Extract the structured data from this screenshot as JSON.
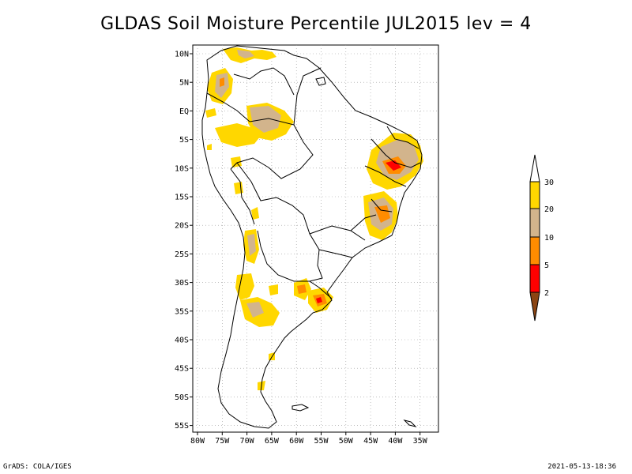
{
  "title": "GLDAS Soil Moisture Percentile JUL2015 lev = 4",
  "lat_labels": [
    "10N",
    "5N",
    "EQ",
    "5S",
    "10S",
    "15S",
    "20S",
    "25S",
    "30S",
    "35S",
    "40S",
    "45S",
    "50S",
    "55S"
  ],
  "lon_labels": [
    "80W",
    "75W",
    "70W",
    "65W",
    "60W",
    "55W",
    "50W",
    "45W",
    "40W",
    "35W"
  ],
  "colorbar": {
    "labels": [
      "30",
      "20",
      "10",
      "5",
      "2"
    ],
    "colors": [
      "#ffffff",
      "#ffd700",
      "#d2b48c",
      "#ff8c00",
      "#ff0000",
      "#8b4513"
    ]
  },
  "footer": {
    "left": "GrADS: COLA/IGES",
    "right": "2021-05-13-18:36"
  },
  "colors": {
    "yellow": "#ffd700",
    "tan": "#d2b48c",
    "orange": "#ff8c00",
    "red": "#ff0000",
    "brown": "#8b4513"
  }
}
